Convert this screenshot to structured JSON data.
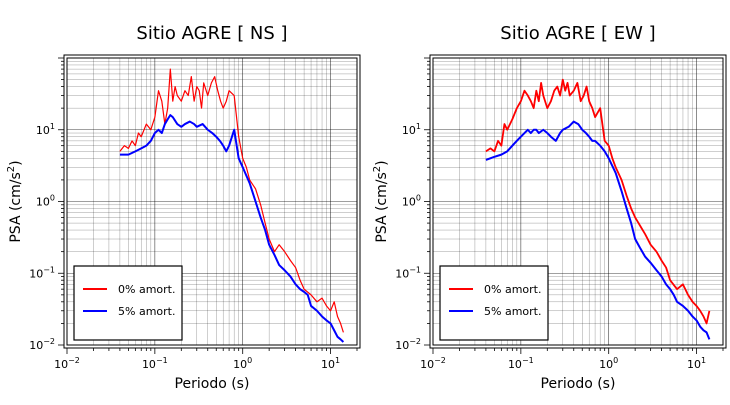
{
  "chart_data": [
    {
      "type": "line",
      "title": "Sitio AGRE [ NS ]",
      "xlabel": "Periodo (s)",
      "ylabel_main": "PSA (cm/s",
      "ylabel_sup": "2",
      "ylabel_close": ")",
      "x_scale": "log",
      "y_scale": "log",
      "xlim": [
        0.01,
        20
      ],
      "ylim": [
        0.01,
        100
      ],
      "grid": true,
      "legend_position": "bottom-left",
      "x_ticks": [
        {
          "value": 0.01,
          "base": "10",
          "exp": "−2"
        },
        {
          "value": 0.1,
          "base": "10",
          "exp": "−1"
        },
        {
          "value": 1,
          "base": "10",
          "exp": "0"
        },
        {
          "value": 10,
          "base": "10",
          "exp": "1"
        }
      ],
      "y_ticks": [
        {
          "value": 0.01,
          "base": "10",
          "exp": "−2"
        },
        {
          "value": 0.1,
          "base": "10",
          "exp": "−1"
        },
        {
          "value": 1,
          "base": "10",
          "exp": "0"
        },
        {
          "value": 10,
          "base": "10",
          "exp": "1"
        }
      ],
      "series": [
        {
          "name": "0% amort.",
          "color": "#ff0000",
          "x": [
            0.04,
            0.045,
            0.05,
            0.055,
            0.06,
            0.065,
            0.07,
            0.08,
            0.09,
            0.1,
            0.11,
            0.12,
            0.13,
            0.14,
            0.15,
            0.16,
            0.17,
            0.18,
            0.2,
            0.22,
            0.24,
            0.26,
            0.28,
            0.3,
            0.32,
            0.34,
            0.36,
            0.4,
            0.44,
            0.48,
            0.52,
            0.56,
            0.6,
            0.65,
            0.7,
            0.8,
            0.9,
            1.0,
            1.1,
            1.2,
            1.4,
            1.6,
            1.8,
            2.0,
            2.3,
            2.6,
            3.0,
            3.5,
            4.0,
            4.5,
            5.0,
            6.0,
            7.0,
            8.0,
            9.0,
            10.0,
            11.0,
            12.0,
            13.0,
            14.0
          ],
          "y": [
            5,
            6,
            5.5,
            7,
            6,
            9,
            8,
            12,
            10,
            15,
            35,
            25,
            12,
            20,
            70,
            25,
            40,
            30,
            25,
            35,
            30,
            55,
            25,
            40,
            35,
            20,
            45,
            30,
            45,
            55,
            35,
            25,
            20,
            25,
            35,
            30,
            8,
            4,
            3,
            2,
            1.5,
            0.9,
            0.5,
            0.3,
            0.2,
            0.25,
            0.2,
            0.15,
            0.12,
            0.08,
            0.06,
            0.05,
            0.04,
            0.045,
            0.035,
            0.03,
            0.04,
            0.025,
            0.02,
            0.015
          ]
        },
        {
          "name": "5% amort.",
          "color": "#0000ff",
          "x": [
            0.04,
            0.05,
            0.06,
            0.07,
            0.08,
            0.09,
            0.1,
            0.11,
            0.12,
            0.13,
            0.14,
            0.15,
            0.16,
            0.18,
            0.2,
            0.22,
            0.25,
            0.28,
            0.3,
            0.35,
            0.4,
            0.45,
            0.5,
            0.55,
            0.6,
            0.65,
            0.7,
            0.8,
            0.9,
            1.0,
            1.2,
            1.4,
            1.6,
            1.8,
            2.0,
            2.3,
            2.6,
            3.0,
            3.5,
            4.0,
            4.5,
            5.0,
            5.5,
            6.0,
            7.0,
            8.0,
            9.0,
            10.0,
            11.0,
            12.0,
            13.0,
            14.0
          ],
          "y": [
            4.5,
            4.5,
            5,
            5.5,
            6,
            7,
            9,
            10,
            9,
            12,
            14,
            16,
            15,
            12,
            11,
            12,
            13,
            12,
            11,
            12,
            10,
            9,
            8,
            7,
            6,
            5,
            6,
            10,
            4,
            3,
            1.8,
            1.0,
            0.6,
            0.4,
            0.25,
            0.18,
            0.13,
            0.11,
            0.09,
            0.07,
            0.06,
            0.055,
            0.05,
            0.035,
            0.03,
            0.025,
            0.022,
            0.02,
            0.016,
            0.013,
            0.012,
            0.011
          ]
        }
      ]
    },
    {
      "type": "line",
      "title": "Sitio AGRE [ EW ]",
      "xlabel": "Periodo (s)",
      "ylabel_main": "PSA (cm/s",
      "ylabel_sup": "2",
      "ylabel_close": ")",
      "x_scale": "log",
      "y_scale": "log",
      "xlim": [
        0.01,
        20
      ],
      "ylim": [
        0.01,
        100
      ],
      "grid": true,
      "legend_position": "bottom-left",
      "x_ticks": [
        {
          "value": 0.01,
          "base": "10",
          "exp": "−2"
        },
        {
          "value": 0.1,
          "base": "10",
          "exp": "−1"
        },
        {
          "value": 1,
          "base": "10",
          "exp": "0"
        },
        {
          "value": 10,
          "base": "10",
          "exp": "1"
        }
      ],
      "y_ticks": [
        {
          "value": 0.01,
          "base": "10",
          "exp": "−2"
        },
        {
          "value": 0.1,
          "base": "10",
          "exp": "−1"
        },
        {
          "value": 1,
          "base": "10",
          "exp": "0"
        },
        {
          "value": 10,
          "base": "10",
          "exp": "1"
        }
      ],
      "series": [
        {
          "name": "0% amort.",
          "color": "#ff0000",
          "x": [
            0.04,
            0.045,
            0.05,
            0.055,
            0.06,
            0.065,
            0.07,
            0.08,
            0.09,
            0.1,
            0.11,
            0.12,
            0.13,
            0.14,
            0.15,
            0.16,
            0.17,
            0.18,
            0.2,
            0.22,
            0.24,
            0.26,
            0.28,
            0.3,
            0.32,
            0.34,
            0.36,
            0.4,
            0.44,
            0.48,
            0.52,
            0.56,
            0.6,
            0.65,
            0.7,
            0.8,
            0.9,
            1.0,
            1.1,
            1.2,
            1.4,
            1.6,
            1.8,
            2.0,
            2.3,
            2.6,
            3.0,
            3.5,
            4.0,
            4.5,
            5.0,
            6.0,
            7.0,
            8.0,
            9.0,
            10.0,
            11.0,
            12.0,
            13.0,
            14.0
          ],
          "y": [
            5,
            5.5,
            5,
            7,
            6,
            12,
            10,
            14,
            20,
            25,
            35,
            30,
            25,
            20,
            35,
            25,
            45,
            30,
            20,
            25,
            35,
            40,
            30,
            50,
            35,
            45,
            30,
            35,
            45,
            25,
            30,
            40,
            25,
            20,
            15,
            20,
            7,
            6,
            4,
            3,
            2,
            1.2,
            0.8,
            0.6,
            0.45,
            0.35,
            0.25,
            0.2,
            0.15,
            0.12,
            0.08,
            0.06,
            0.07,
            0.05,
            0.04,
            0.035,
            0.03,
            0.025,
            0.02,
            0.03
          ]
        },
        {
          "name": "5% amort.",
          "color": "#0000ff",
          "x": [
            0.04,
            0.05,
            0.06,
            0.07,
            0.08,
            0.09,
            0.1,
            0.11,
            0.12,
            0.13,
            0.14,
            0.15,
            0.16,
            0.18,
            0.2,
            0.22,
            0.25,
            0.28,
            0.3,
            0.35,
            0.4,
            0.45,
            0.5,
            0.55,
            0.6,
            0.65,
            0.7,
            0.8,
            0.9,
            1.0,
            1.2,
            1.4,
            1.6,
            1.8,
            2.0,
            2.3,
            2.6,
            3.0,
            3.5,
            4.0,
            4.5,
            5.0,
            5.5,
            6.0,
            7.0,
            8.0,
            9.0,
            10.0,
            11.0,
            12.0,
            13.0,
            14.0
          ],
          "y": [
            3.8,
            4.2,
            4.5,
            5,
            6,
            7,
            8,
            9,
            10,
            9,
            10,
            10,
            9,
            10,
            9,
            8,
            7,
            9,
            10,
            11,
            13,
            12,
            10,
            9,
            8,
            7,
            7,
            6,
            5,
            4,
            2.5,
            1.4,
            0.8,
            0.5,
            0.3,
            0.22,
            0.17,
            0.14,
            0.11,
            0.09,
            0.07,
            0.06,
            0.05,
            0.04,
            0.035,
            0.03,
            0.025,
            0.022,
            0.018,
            0.016,
            0.015,
            0.012
          ]
        }
      ]
    }
  ]
}
